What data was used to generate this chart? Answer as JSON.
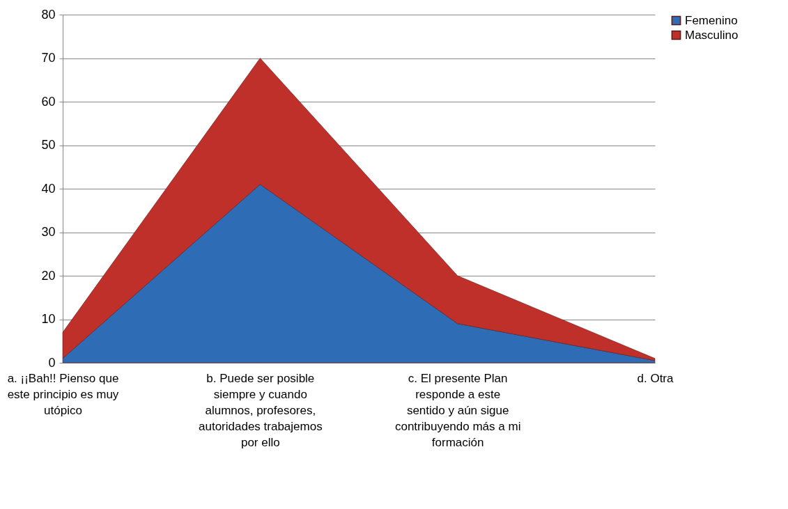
{
  "chart_data": {
    "type": "area",
    "stacked": true,
    "categories": [
      "a. ¡¡Bah!! Pienso que este principio es muy utópico",
      "b. Puede ser posible siempre y cuando alumnos, profesores, autoridades trabajemos por ello",
      "c. El presente Plan responde a este sentido y aún sigue contribuyendo más a mi formación",
      "d. Otra"
    ],
    "series": [
      {
        "name": "Femenino",
        "color": "#2e6db5",
        "values": [
          1,
          41,
          9,
          0.5
        ]
      },
      {
        "name": "Masculino",
        "color": "#c0302b",
        "values": [
          6,
          29,
          11,
          0.5
        ]
      }
    ],
    "ylim": [
      0,
      80
    ],
    "yticks": [
      0,
      10,
      20,
      30,
      40,
      50,
      60,
      70,
      80
    ],
    "grid": "y",
    "legend": "right"
  }
}
